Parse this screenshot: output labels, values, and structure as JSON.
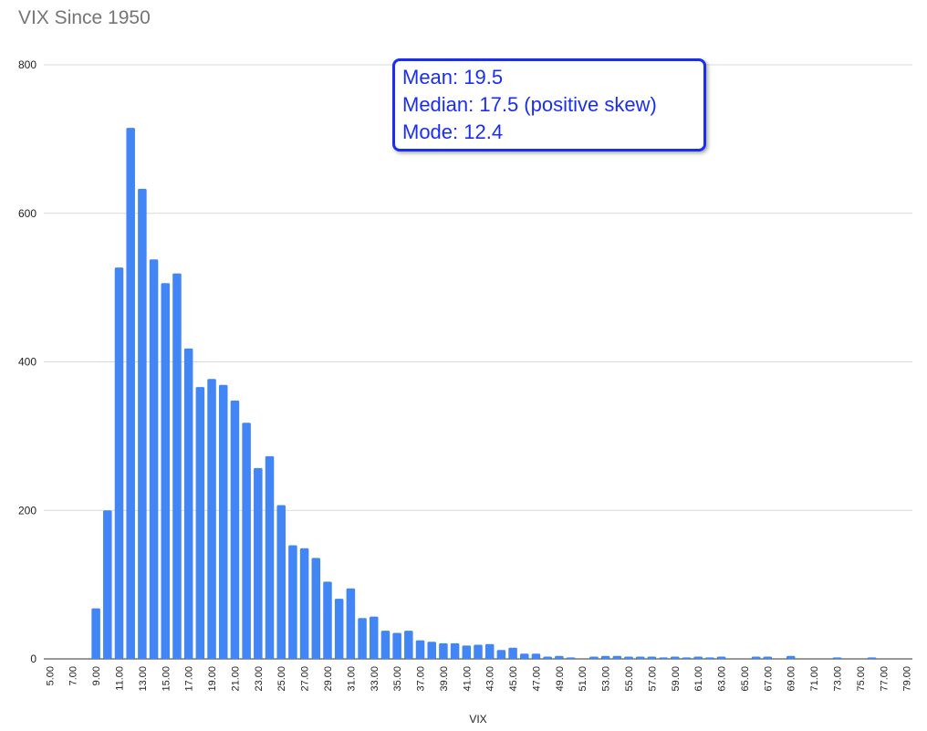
{
  "chart_data": {
    "type": "bar",
    "title": "VIX Since 1950",
    "xlabel": "VIX",
    "ylabel": "",
    "ylim": [
      0,
      800
    ],
    "yticks": [
      0,
      200,
      400,
      600,
      800
    ],
    "grid": true,
    "bar_color": "#4285f4",
    "annotation_color": "#1a2ef2",
    "categories": [
      "5.00",
      "6.00",
      "7.00",
      "8.00",
      "9.00",
      "10.00",
      "11.00",
      "12.00",
      "13.00",
      "14.00",
      "15.00",
      "16.00",
      "17.00",
      "18.00",
      "19.00",
      "20.00",
      "21.00",
      "22.00",
      "23.00",
      "24.00",
      "25.00",
      "26.00",
      "27.00",
      "28.00",
      "29.00",
      "30.00",
      "31.00",
      "32.00",
      "33.00",
      "34.00",
      "35.00",
      "36.00",
      "37.00",
      "38.00",
      "39.00",
      "40.00",
      "41.00",
      "42.00",
      "43.00",
      "44.00",
      "45.00",
      "46.00",
      "47.00",
      "48.00",
      "49.00",
      "50.00",
      "51.00",
      "52.00",
      "53.00",
      "54.00",
      "55.00",
      "56.00",
      "57.00",
      "58.00",
      "59.00",
      "60.00",
      "61.00",
      "62.00",
      "63.00",
      "64.00",
      "65.00",
      "66.00",
      "67.00",
      "68.00",
      "69.00",
      "70.00",
      "71.00",
      "72.00",
      "73.00",
      "74.00",
      "75.00",
      "76.00",
      "77.00",
      "78.00",
      "79.00"
    ],
    "tick_labels": [
      "5.00",
      "7.00",
      "9.00",
      "11.00",
      "13.00",
      "15.00",
      "17.00",
      "19.00",
      "21.00",
      "23.00",
      "25.00",
      "27.00",
      "29.00",
      "31.00",
      "33.00",
      "35.00",
      "37.00",
      "39.00",
      "41.00",
      "43.00",
      "45.00",
      "47.00",
      "49.00",
      "51.00",
      "53.00",
      "55.00",
      "57.00",
      "59.00",
      "61.00",
      "63.00",
      "65.00",
      "67.00",
      "69.00",
      "71.00",
      "73.00",
      "75.00",
      "77.00",
      "79.00"
    ],
    "values": [
      0,
      0,
      0,
      0,
      68,
      200,
      527,
      715,
      633,
      538,
      506,
      519,
      418,
      366,
      377,
      369,
      348,
      318,
      257,
      273,
      207,
      153,
      149,
      136,
      104,
      81,
      95,
      55,
      57,
      38,
      35,
      38,
      25,
      23,
      21,
      21,
      18,
      19,
      20,
      12,
      15,
      7,
      7,
      3,
      4,
      2,
      0,
      3,
      4,
      4,
      3,
      3,
      3,
      2,
      3,
      2,
      3,
      2,
      3,
      0,
      0,
      3,
      3,
      0,
      4,
      0,
      0,
      0,
      2,
      0,
      0,
      2,
      0,
      0,
      0
    ],
    "annotation": [
      "Mean: 19.5",
      "Median: 17.5 (positive skew)",
      "Mode: 12.4"
    ]
  }
}
